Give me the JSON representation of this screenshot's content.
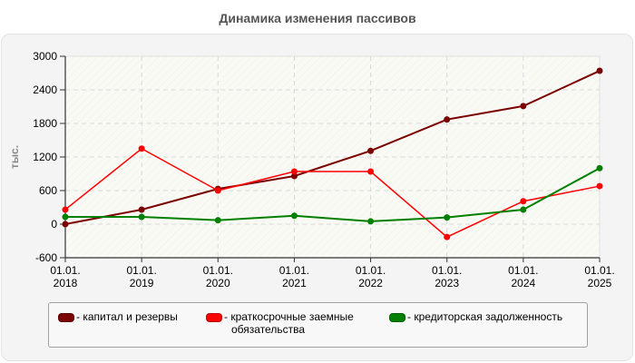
{
  "title": "Динамика изменения пассивов",
  "chart_data": {
    "type": "line",
    "title": "Динамика изменения пассивов",
    "xlabel": "",
    "ylabel": "тыс.",
    "ylim": [
      -600,
      3000
    ],
    "yticks": [
      3000,
      2400,
      1800,
      1200,
      600,
      0,
      -600
    ],
    "categories": [
      "01.01.\n2018",
      "01.01.\n2019",
      "01.01.\n2020",
      "01.01.\n2021",
      "01.01.\n2022",
      "01.01.\n2023",
      "01.01.\n2024",
      "01.01.\n2025"
    ],
    "x_labels_line1": [
      "01.01.",
      "01.01.",
      "01.01.",
      "01.01.",
      "01.01.",
      "01.01.",
      "01.01.",
      "01.01."
    ],
    "x_labels_line2": [
      "2018",
      "2019",
      "2020",
      "2021",
      "2022",
      "2023",
      "2024",
      "2025"
    ],
    "grid": true,
    "legend_position": "bottom",
    "series": [
      {
        "name": "капитал и резервы",
        "color": "#7b0000",
        "values": [
          0,
          260,
          630,
          860,
          1310,
          1870,
          2110,
          2740
        ]
      },
      {
        "name": "краткосрочные заемные обязательства",
        "color": "#ff0000",
        "values": [
          260,
          1350,
          600,
          940,
          940,
          -230,
          410,
          680
        ]
      },
      {
        "name": "кредиторская задолженность",
        "color": "#008000",
        "values": [
          130,
          130,
          70,
          150,
          50,
          120,
          260,
          1000
        ]
      }
    ]
  },
  "legend": {
    "items": [
      {
        "label": "- капитал и резервы",
        "color": "#7b0000"
      },
      {
        "label_line1": "- краткосрочные заемные",
        "label_line2": "обязательства",
        "color": "#ff0000"
      },
      {
        "label": "- кредиторская задолженность",
        "color": "#008000"
      }
    ]
  }
}
